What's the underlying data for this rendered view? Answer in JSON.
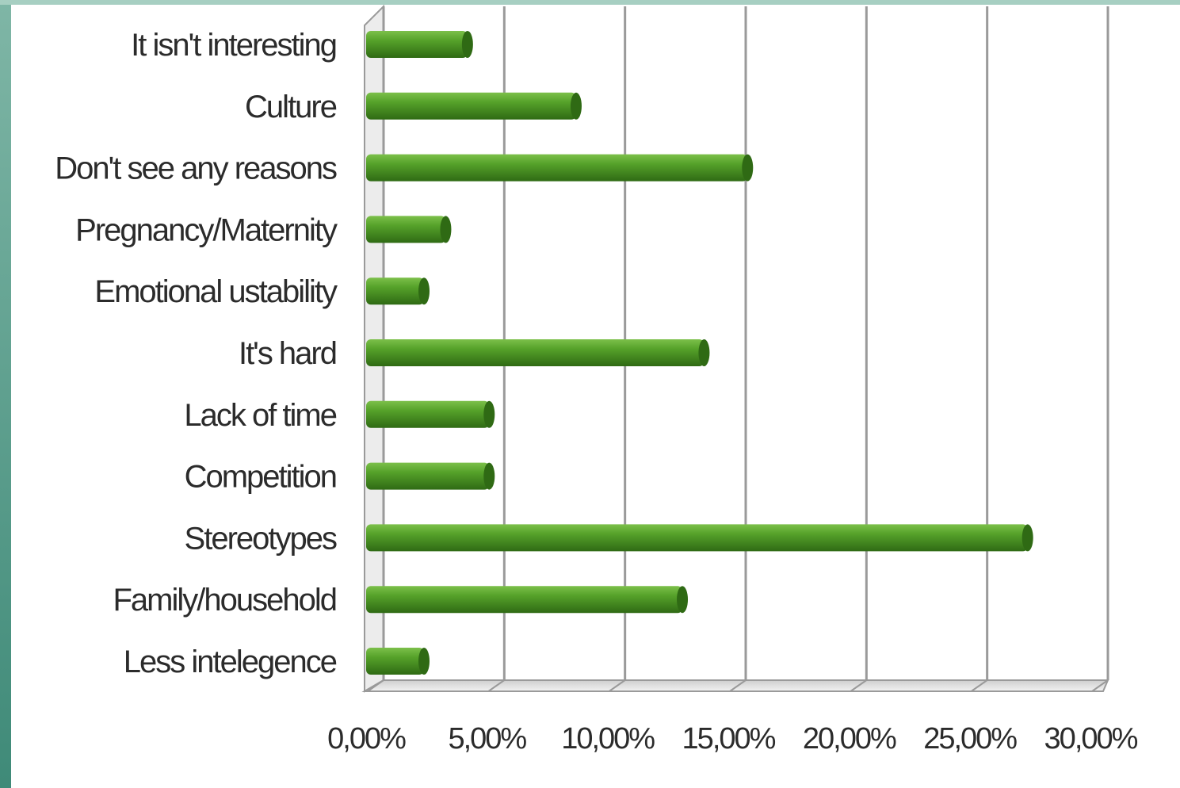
{
  "theme": {
    "bar_color": "#56a22a",
    "bar_dark": "#2f6a14",
    "bar_light": "#7cc04a",
    "grid_color": "#9a9a9a",
    "frame_left": "#7fb6a6",
    "frame_top": "#a7cfc2",
    "text_color": "#2b2b2b"
  },
  "chart_data": {
    "type": "bar",
    "orientation": "horizontal",
    "title": "",
    "xlabel": "",
    "ylabel": "",
    "xlim": [
      0,
      0.3
    ],
    "categories": [
      "It isn't interesting",
      "Culture",
      "Don't see any reasons",
      "Pregnancy/Maternity",
      "Emotional ustability",
      "It's hard",
      "Lack of time",
      "Competition",
      "Stereotypes",
      "Family/household",
      "Less intelegence"
    ],
    "values": [
      0.04,
      0.085,
      0.156,
      0.031,
      0.022,
      0.138,
      0.049,
      0.049,
      0.272,
      0.129,
      0.022
    ],
    "x_ticks": [
      0.0,
      0.05,
      0.1,
      0.15,
      0.2,
      0.25,
      0.3
    ],
    "x_tick_labels": [
      "0,00%",
      "5,00%",
      "10,00%",
      "15,00%",
      "20,00%",
      "25,00%",
      "30,00%"
    ],
    "grid": true,
    "legend": false
  }
}
